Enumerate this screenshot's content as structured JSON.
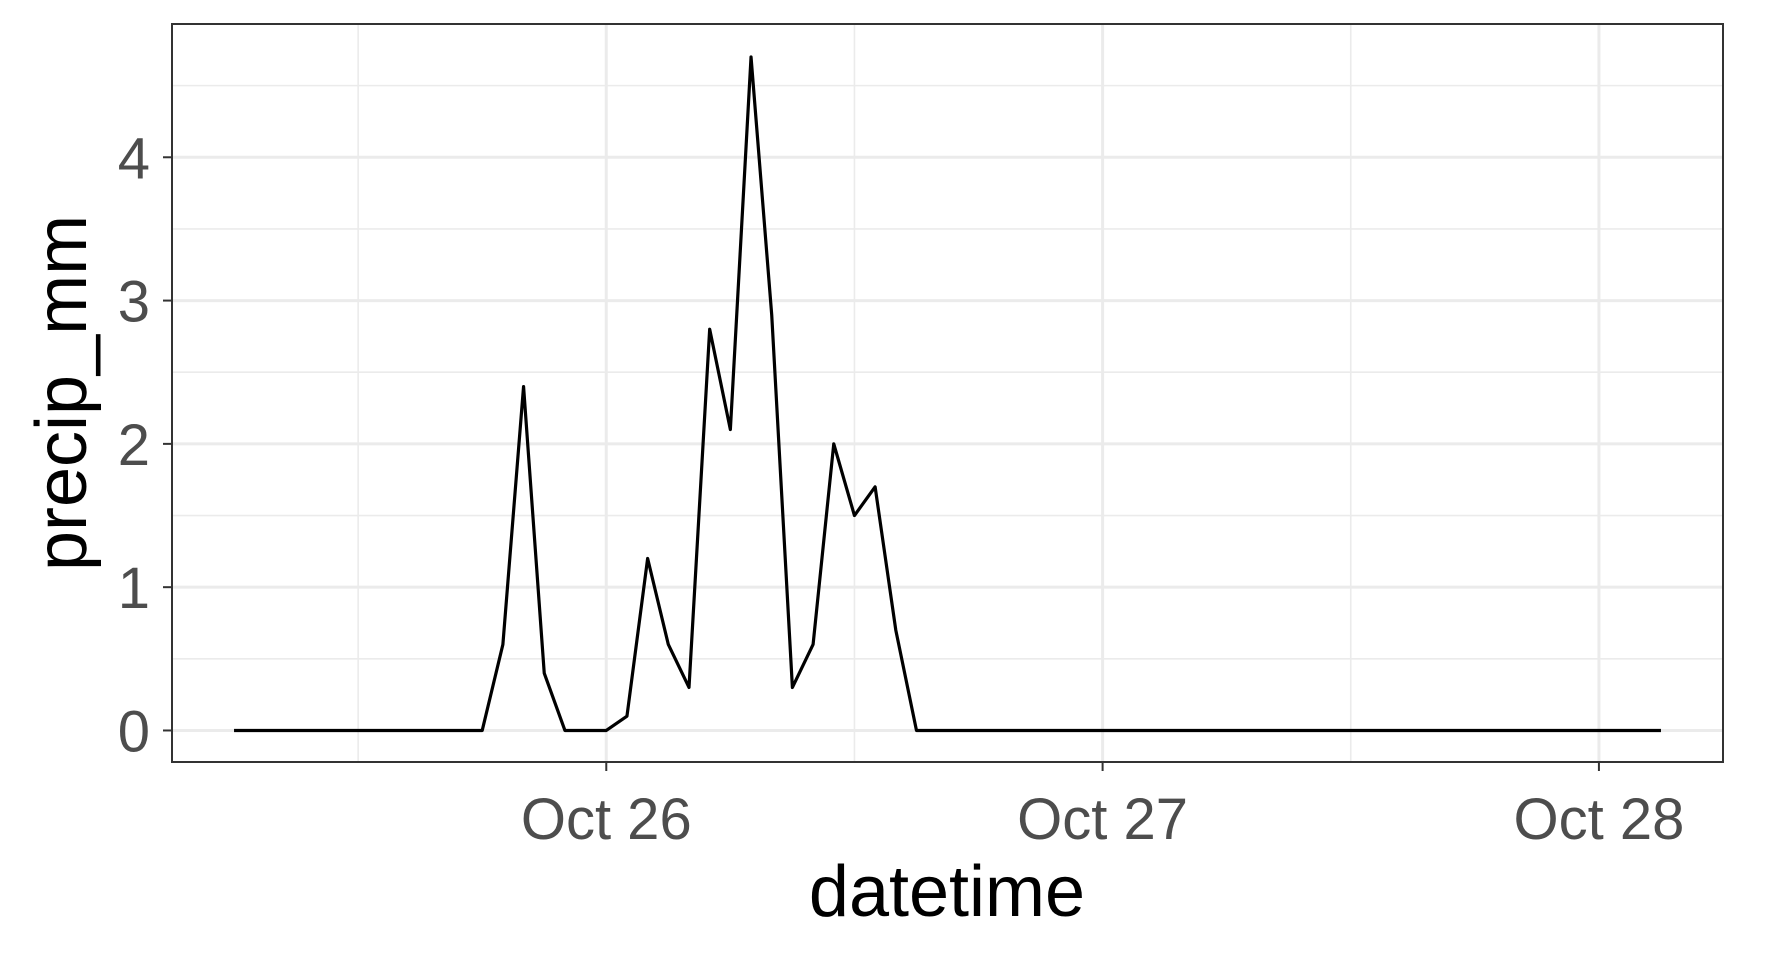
{
  "chart_data": {
    "type": "line",
    "xlabel": "datetime",
    "ylabel": "precip_mm",
    "x_axis_type": "datetime",
    "xlim": [
      "2025-10-25 03:00",
      "2025-10-28 06:00"
    ],
    "ylim": [
      -0.22,
      4.93
    ],
    "x_ticks": [
      {
        "value": "2025-10-26 00:00",
        "label": "Oct 26"
      },
      {
        "value": "2025-10-27 00:00",
        "label": "Oct 27"
      },
      {
        "value": "2025-10-28 00:00",
        "label": "Oct 28"
      }
    ],
    "x_minor_ticks": [
      "2025-10-25 12:00",
      "2025-10-26 12:00",
      "2025-10-27 12:00"
    ],
    "y_ticks": [
      0,
      1,
      2,
      3,
      4
    ],
    "y_minor_ticks": [
      0.5,
      1.5,
      2.5,
      3.5,
      4.5
    ],
    "grid": true,
    "legend": "none",
    "colors": {
      "line": "#000000",
      "grid": "#ebebeb",
      "panel_border": "#333333"
    },
    "series": [
      {
        "x": [
          "2025-10-25 06:00",
          "2025-10-25 18:00",
          "2025-10-25 19:00",
          "2025-10-25 20:00",
          "2025-10-25 21:00",
          "2025-10-25 22:00",
          "2025-10-25 23:00",
          "2025-10-26 00:00",
          "2025-10-26 01:00",
          "2025-10-26 02:00",
          "2025-10-26 03:00",
          "2025-10-26 04:00",
          "2025-10-26 05:00",
          "2025-10-26 06:00",
          "2025-10-26 07:00",
          "2025-10-26 08:00",
          "2025-10-26 09:00",
          "2025-10-26 10:00",
          "2025-10-26 11:00",
          "2025-10-26 12:00",
          "2025-10-26 13:00",
          "2025-10-26 14:00",
          "2025-10-26 15:00",
          "2025-10-26 16:00",
          "2025-10-26 17:00",
          "2025-10-26 18:00",
          "2025-10-26 19:00",
          "2025-10-26 20:00",
          "2025-10-26 21:00",
          "2025-10-26 22:00",
          "2025-10-26 23:00",
          "2025-10-27 00:00",
          "2025-10-27 01:00",
          "2025-10-27 02:00",
          "2025-10-27 03:00",
          "2025-10-27 04:00",
          "2025-10-27 05:00",
          "2025-10-27 06:00",
          "2025-10-27 07:00",
          "2025-10-27 08:00",
          "2025-10-27 09:00",
          "2025-10-27 10:00",
          "2025-10-27 11:00",
          "2025-10-27 12:00",
          "2025-10-28 03:00"
        ],
        "values": [
          0,
          0,
          0.6,
          2.4,
          0.4,
          0,
          0,
          0,
          0.1,
          1.2,
          0.6,
          0.3,
          2.8,
          2.1,
          4.7,
          2.9,
          0.3,
          0.6,
          2.0,
          1.5,
          1.7,
          0.7,
          0,
          0,
          0,
          0,
          0,
          0,
          0,
          0,
          0,
          0,
          0,
          0,
          0,
          0,
          0,
          0,
          0,
          0,
          0,
          0,
          0,
          0,
          0
        ]
      }
    ]
  }
}
